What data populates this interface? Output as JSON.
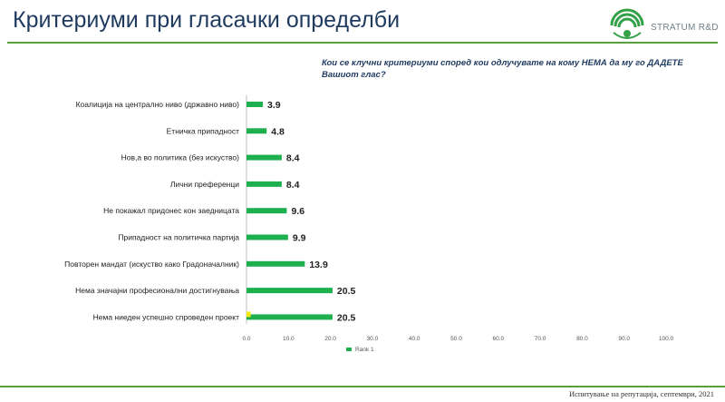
{
  "header": {
    "title": "Критериуми при гласачки определби",
    "logo_text": "STRATUM R&D"
  },
  "question": "Кои се клучни критериуми според кои одлучувате на кому НЕМА да му го ДАДЕТЕ Вашиот глас?",
  "footer": "Испитување на репутација, септември, 2021",
  "colors": {
    "bar": "#1eb04f",
    "bar_small": "#f2ea16",
    "title": "#1f3a5f",
    "rule": "#5a9f3e"
  },
  "chart_data": {
    "type": "bar",
    "orientation": "horizontal",
    "categories": [
      "Коалиција на централно ниво (државно ниво)",
      "Етничка припадност",
      "Нов,а во политика (без искуство)",
      "Лични преференци",
      "Не покажал придонес кон заедницата",
      "Припадност на политичка партија",
      "Повторен мандат (искуство како Градоначалник)",
      "Нема значајни професионални достигнувања",
      "Нема ниеден успешно спроведен проект"
    ],
    "series": [
      {
        "name": "Rank 1",
        "values": [
          3.9,
          4.8,
          8.4,
          8.4,
          9.6,
          9.9,
          13.9,
          20.5,
          20.5
        ]
      }
    ],
    "extra_small_bar": {
      "category_index": 8,
      "value": 1.0
    },
    "data_labels": [
      "3.9",
      "4.8",
      "8.4",
      "8.4",
      "9.6",
      "9.9",
      "13.9",
      "20.5",
      "20.5"
    ],
    "xlim": [
      0,
      100
    ],
    "ticks": [
      "0.0",
      "10.0",
      "20.0",
      "30.0",
      "40.0",
      "50.0",
      "60.0",
      "70.0",
      "80.0",
      "90.0",
      "100.0"
    ],
    "legend_position": "bottom",
    "grid": false
  }
}
